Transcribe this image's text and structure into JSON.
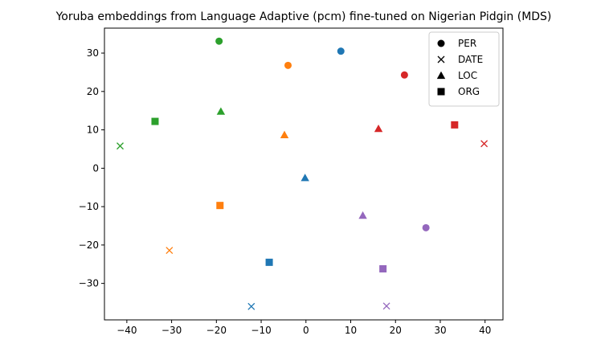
{
  "chart_data": {
    "type": "scatter",
    "title": "Yoruba embeddings from Language Adaptive (pcm) fine-tuned on Nigerian Pidgin (MDS)",
    "xlabel": "",
    "ylabel": "",
    "xlim": [
      -45,
      44
    ],
    "ylim": [
      -39.5,
      36.5
    ],
    "xticks": [
      -40,
      -30,
      -20,
      -10,
      0,
      10,
      20,
      30,
      40
    ],
    "yticks": [
      30,
      20,
      10,
      0,
      -10,
      -20,
      -30
    ],
    "xtick_labels": [
      "−40",
      "−30",
      "−20",
      "−10",
      "0",
      "10",
      "20",
      "30",
      "40"
    ],
    "ytick_labels": [
      "30",
      "20",
      "10",
      "0",
      "−10",
      "−20",
      "−30"
    ],
    "grid": false,
    "legend": {
      "placement": "top-right",
      "entries": [
        {
          "label": "PER",
          "marker": "circle"
        },
        {
          "label": "DATE",
          "marker": "x"
        },
        {
          "label": "LOC",
          "marker": "triangle"
        },
        {
          "label": "ORG",
          "marker": "square"
        }
      ]
    },
    "points": [
      {
        "x": 7.8,
        "y": 30.5,
        "marker": "circle",
        "color": "#1f77b4"
      },
      {
        "x": -0.2,
        "y": -2.5,
        "marker": "triangle",
        "color": "#1f77b4"
      },
      {
        "x": -8.2,
        "y": -24.5,
        "marker": "square",
        "color": "#1f77b4"
      },
      {
        "x": -12.2,
        "y": -36.0,
        "marker": "x",
        "color": "#1f77b4"
      },
      {
        "x": -4.0,
        "y": 26.8,
        "marker": "circle",
        "color": "#ff7f0e"
      },
      {
        "x": -4.8,
        "y": 8.7,
        "marker": "triangle",
        "color": "#ff7f0e"
      },
      {
        "x": -19.2,
        "y": -9.7,
        "marker": "square",
        "color": "#ff7f0e"
      },
      {
        "x": -30.5,
        "y": -21.4,
        "marker": "x",
        "color": "#ff7f0e"
      },
      {
        "x": -19.4,
        "y": 33.1,
        "marker": "circle",
        "color": "#2ca02c"
      },
      {
        "x": -19.0,
        "y": 14.8,
        "marker": "triangle",
        "color": "#2ca02c"
      },
      {
        "x": -33.7,
        "y": 12.2,
        "marker": "square",
        "color": "#2ca02c"
      },
      {
        "x": -41.5,
        "y": 5.8,
        "marker": "x",
        "color": "#2ca02c"
      },
      {
        "x": 22.0,
        "y": 24.3,
        "marker": "circle",
        "color": "#d62728"
      },
      {
        "x": 16.2,
        "y": 10.3,
        "marker": "triangle",
        "color": "#d62728"
      },
      {
        "x": 33.2,
        "y": 11.3,
        "marker": "square",
        "color": "#d62728"
      },
      {
        "x": 39.8,
        "y": 6.4,
        "marker": "x",
        "color": "#d62728"
      },
      {
        "x": 26.8,
        "y": -15.5,
        "marker": "circle",
        "color": "#9467bd"
      },
      {
        "x": 12.7,
        "y": -12.3,
        "marker": "triangle",
        "color": "#9467bd"
      },
      {
        "x": 17.2,
        "y": -26.2,
        "marker": "square",
        "color": "#9467bd"
      },
      {
        "x": 18.0,
        "y": -35.9,
        "marker": "x",
        "color": "#9467bd"
      }
    ]
  }
}
